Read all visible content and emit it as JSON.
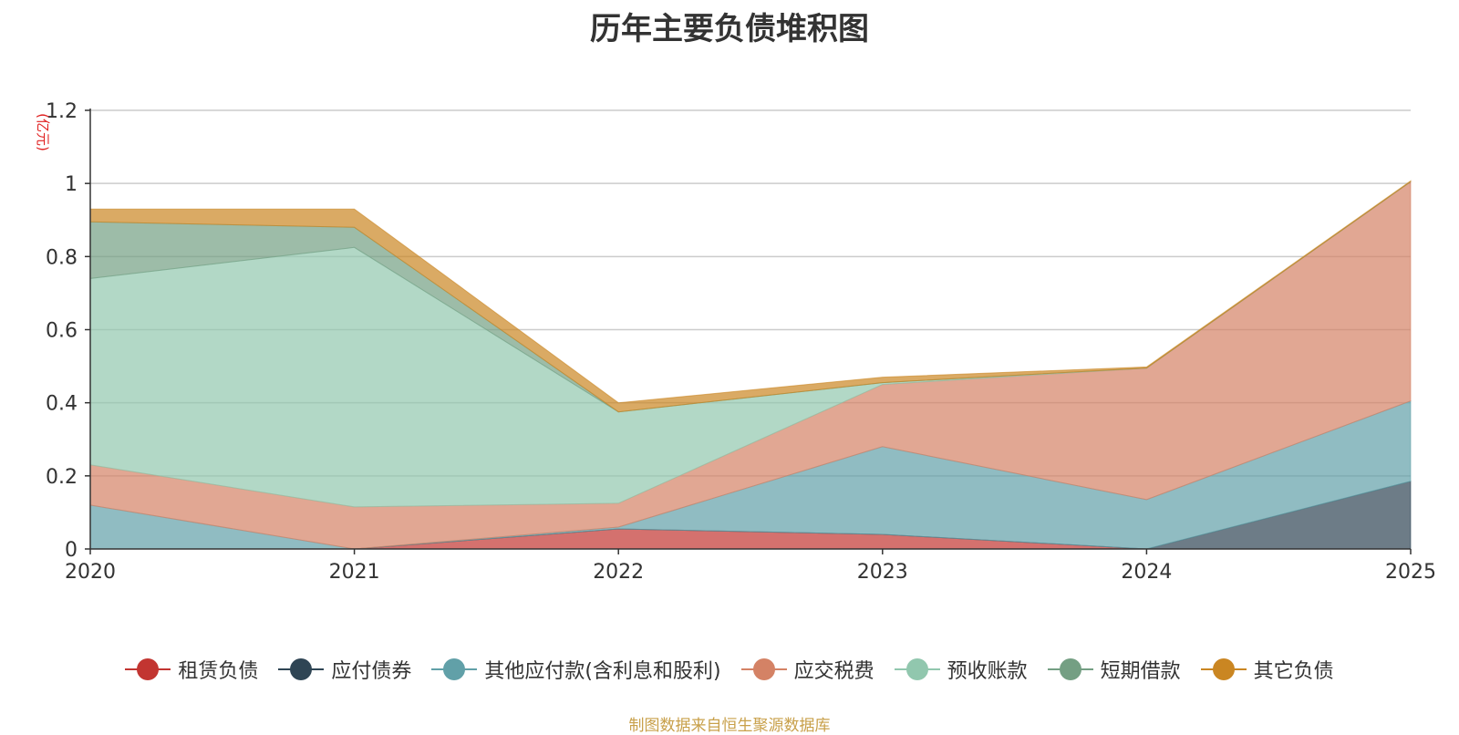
{
  "chart_data": {
    "type": "area",
    "stacked": true,
    "title": "历年主要负债堆积图",
    "unit_label": "(亿元)",
    "x": [
      "2020",
      "2021",
      "2022",
      "2023",
      "2024",
      "2025"
    ],
    "ylim": [
      0,
      1.2
    ],
    "yticks": [
      0,
      0.2,
      0.4,
      0.6,
      0.8,
      1,
      1.2
    ],
    "ytick_labels": [
      "0",
      "0.2",
      "0.4",
      "0.6",
      "0.8",
      "1",
      "1.2"
    ],
    "grid": true,
    "legend_position": "bottom",
    "series": [
      {
        "name": "租赁负债",
        "color": "#c23531",
        "values": [
          0.0,
          0.0,
          0.055,
          0.04,
          0.0,
          0.0
        ]
      },
      {
        "name": "应付债券",
        "color": "#2f4554",
        "values": [
          0.0,
          0.0,
          0.0,
          0.0,
          0.0,
          0.185
        ]
      },
      {
        "name": "其他应付款(含利息和股利)",
        "color": "#61a0a8",
        "values": [
          0.12,
          0.0,
          0.005,
          0.24,
          0.135,
          0.22
        ]
      },
      {
        "name": "应交税费",
        "color": "#d48265",
        "values": [
          0.11,
          0.115,
          0.065,
          0.17,
          0.36,
          0.6
        ]
      },
      {
        "name": "预收账款",
        "color": "#91c7ae",
        "values": [
          0.51,
          0.71,
          0.25,
          0.005,
          0.0,
          0.0
        ]
      },
      {
        "name": "短期借款",
        "color": "#749f83",
        "values": [
          0.155,
          0.055,
          0.0,
          0.0,
          0.0,
          0.0
        ]
      },
      {
        "name": "其它负债",
        "color": "#ca8622",
        "values": [
          0.035,
          0.05,
          0.025,
          0.015,
          0.003,
          0.002
        ]
      }
    ],
    "source_note": "制图数据来自恒生聚源数据库"
  }
}
